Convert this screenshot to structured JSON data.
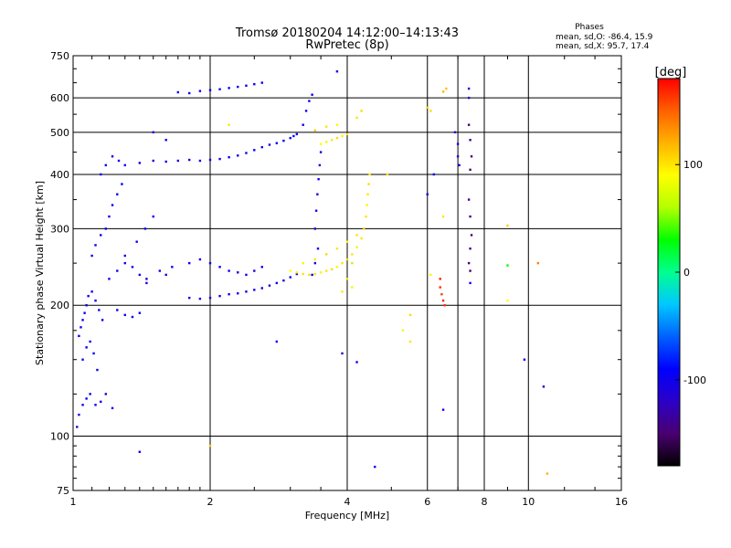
{
  "chart_data": {
    "type": "scatter",
    "title": "Tromsø 20180204 14:12:00–14:13:43",
    "subtitle": "RwPretec (8p)",
    "xlabel": "Frequency [MHz]",
    "ylabel": "Stationary phase Virtual Height [km]",
    "x_scale": "log",
    "y_scale": "log",
    "xlim": [
      1,
      16
    ],
    "ylim": [
      75,
      750
    ],
    "x_ticks": [
      {
        "value": 1,
        "label": "1"
      },
      {
        "value": 2,
        "label": "2"
      },
      {
        "value": 4,
        "label": "4"
      },
      {
        "value": 6,
        "label": "6"
      },
      {
        "value": 8,
        "label": "8"
      },
      {
        "value": 10,
        "label": "10"
      },
      {
        "value": 16,
        "label": "16"
      }
    ],
    "y_ticks": [
      {
        "value": 75,
        "label": "75"
      },
      {
        "value": 100,
        "label": "100"
      },
      {
        "value": 200,
        "label": "200"
      },
      {
        "value": 300,
        "label": "300"
      },
      {
        "value": 400,
        "label": "400"
      },
      {
        "value": 500,
        "label": "500"
      },
      {
        "value": 600,
        "label": "600"
      },
      {
        "value": 750,
        "label": "750"
      }
    ],
    "x_gridlines": [
      1,
      2,
      4,
      6,
      7,
      8,
      10,
      16
    ],
    "y_gridlines": [
      75,
      100,
      200,
      300,
      400,
      500,
      600,
      750
    ],
    "grid": true,
    "stats_header": "Phases",
    "stats": [
      "mean, sd,O: -86.4, 15.9",
      "mean, sd,X:  95.7, 17.4"
    ],
    "colorbar": {
      "label": "[deg]",
      "range": [
        -180,
        180
      ],
      "ticks": [
        {
          "value": 100,
          "label": "100"
        },
        {
          "value": 0,
          "label": "0"
        },
        {
          "value": -100,
          "label": "-100"
        }
      ],
      "colors": [
        "#000000",
        "#4a0070",
        "#2b00c8",
        "#0000ff",
        "#0060ff",
        "#00c8ff",
        "#00ff90",
        "#00ff00",
        "#b4ff00",
        "#ffff00",
        "#ffb400",
        "#ff6000",
        "#ff0000"
      ]
    },
    "series": [
      {
        "description_color": "phase",
        "points": [
          [
            1.02,
            105,
            -110
          ],
          [
            1.03,
            112,
            -105
          ],
          [
            1.05,
            118,
            -100
          ],
          [
            1.07,
            122,
            -95
          ],
          [
            1.09,
            125,
            -100
          ],
          [
            1.12,
            118,
            -105
          ],
          [
            1.15,
            120,
            -100
          ],
          [
            1.18,
            125,
            -105
          ],
          [
            1.22,
            116,
            -100
          ],
          [
            1.03,
            170,
            -95
          ],
          [
            1.04,
            178,
            -100
          ],
          [
            1.05,
            185,
            -90
          ],
          [
            1.06,
            192,
            -95
          ],
          [
            1.07,
            200,
            -100
          ],
          [
            1.08,
            210,
            -95
          ],
          [
            1.1,
            215,
            -100
          ],
          [
            1.12,
            205,
            -95
          ],
          [
            1.14,
            195,
            -100
          ],
          [
            1.16,
            185,
            -90
          ],
          [
            1.05,
            150,
            -100
          ],
          [
            1.07,
            160,
            -95
          ],
          [
            1.09,
            165,
            -100
          ],
          [
            1.11,
            155,
            -95
          ],
          [
            1.13,
            142,
            -100
          ],
          [
            1.1,
            260,
            -100
          ],
          [
            1.12,
            275,
            -95
          ],
          [
            1.15,
            290,
            -100
          ],
          [
            1.18,
            300,
            -95
          ],
          [
            1.2,
            320,
            -100
          ],
          [
            1.22,
            340,
            -95
          ],
          [
            1.25,
            360,
            -100
          ],
          [
            1.28,
            380,
            -95
          ],
          [
            1.15,
            400,
            -90
          ],
          [
            1.18,
            420,
            -95
          ],
          [
            1.22,
            440,
            -100
          ],
          [
            1.26,
            430,
            -95
          ],
          [
            1.3,
            420,
            -100
          ],
          [
            1.2,
            230,
            -100
          ],
          [
            1.25,
            240,
            -105
          ],
          [
            1.3,
            250,
            -100
          ],
          [
            1.35,
            245,
            -95
          ],
          [
            1.4,
            235,
            -100
          ],
          [
            1.45,
            225,
            -105
          ],
          [
            1.25,
            195,
            -100
          ],
          [
            1.3,
            190,
            -95
          ],
          [
            1.35,
            188,
            -100
          ],
          [
            1.4,
            192,
            -95
          ],
          [
            1.3,
            260,
            -105
          ],
          [
            1.38,
            280,
            -100
          ],
          [
            1.44,
            300,
            -95
          ],
          [
            1.5,
            320,
            -100
          ],
          [
            1.45,
            230,
            -110
          ],
          [
            1.55,
            240,
            -105
          ],
          [
            1.6,
            235,
            -110
          ],
          [
            1.65,
            245,
            -100
          ],
          [
            1.4,
            425,
            -100
          ],
          [
            1.5,
            430,
            -105
          ],
          [
            1.6,
            428,
            -100
          ],
          [
            1.7,
            430,
            -110
          ],
          [
            1.8,
            432,
            -105
          ],
          [
            1.9,
            430,
            -100
          ],
          [
            2.0,
            432,
            -105
          ],
          [
            2.1,
            434,
            -110
          ],
          [
            2.2,
            438,
            -100
          ],
          [
            2.3,
            442,
            -105
          ],
          [
            2.4,
            448,
            -100
          ],
          [
            2.5,
            455,
            -95
          ],
          [
            2.6,
            462,
            -100
          ],
          [
            2.7,
            468,
            -105
          ],
          [
            2.8,
            472,
            -95
          ],
          [
            2.9,
            478,
            -100
          ],
          [
            3.0,
            485,
            -90
          ],
          [
            3.05,
            490,
            -85
          ],
          [
            3.1,
            495,
            -95
          ],
          [
            1.8,
            208,
            -110
          ],
          [
            1.9,
            207,
            -105
          ],
          [
            2.0,
            208,
            -110
          ],
          [
            2.1,
            210,
            -105
          ],
          [
            2.2,
            212,
            -110
          ],
          [
            2.3,
            213,
            -105
          ],
          [
            2.4,
            215,
            -110
          ],
          [
            2.5,
            217,
            -105
          ],
          [
            2.6,
            219,
            -100
          ],
          [
            2.7,
            222,
            -105
          ],
          [
            2.8,
            225,
            -100
          ],
          [
            2.9,
            228,
            -105
          ],
          [
            3.0,
            232,
            -100
          ],
          [
            3.1,
            236,
            -105
          ],
          [
            1.8,
            250,
            -100
          ],
          [
            1.9,
            255,
            -105
          ],
          [
            2.0,
            250,
            -100
          ],
          [
            2.1,
            245,
            -95
          ],
          [
            2.2,
            240,
            -100
          ],
          [
            2.3,
            238,
            -105
          ],
          [
            2.4,
            235,
            -100
          ],
          [
            2.5,
            240,
            -105
          ],
          [
            2.6,
            245,
            -100
          ],
          [
            3.2,
            520,
            -100
          ],
          [
            3.25,
            560,
            -105
          ],
          [
            3.3,
            590,
            -95
          ],
          [
            3.35,
            610,
            -100
          ],
          [
            3.4,
            300,
            -110
          ],
          [
            3.42,
            330,
            -105
          ],
          [
            3.44,
            360,
            -110
          ],
          [
            3.46,
            390,
            -105
          ],
          [
            3.48,
            420,
            -110
          ],
          [
            3.5,
            450,
            -105
          ],
          [
            3.45,
            270,
            -100
          ],
          [
            3.4,
            250,
            -105
          ],
          [
            3.35,
            235,
            -100
          ],
          [
            1.7,
            618,
            -90
          ],
          [
            1.8,
            615,
            -95
          ],
          [
            1.9,
            622,
            -100
          ],
          [
            2.0,
            625,
            -95
          ],
          [
            2.1,
            628,
            -100
          ],
          [
            2.2,
            632,
            -95
          ],
          [
            2.3,
            636,
            -100
          ],
          [
            2.4,
            640,
            -95
          ],
          [
            2.5,
            645,
            -100
          ],
          [
            2.6,
            650,
            -95
          ],
          [
            3.0,
            240,
            90
          ],
          [
            3.1,
            238,
            95
          ],
          [
            3.2,
            236,
            100
          ],
          [
            3.3,
            235,
            105
          ],
          [
            3.4,
            236,
            100
          ],
          [
            3.5,
            238,
            95
          ],
          [
            3.6,
            240,
            100
          ],
          [
            3.7,
            242,
            105
          ],
          [
            3.8,
            245,
            95
          ],
          [
            3.9,
            250,
            100
          ],
          [
            4.0,
            255,
            105
          ],
          [
            4.1,
            262,
            100
          ],
          [
            4.2,
            272,
            95
          ],
          [
            4.3,
            285,
            100
          ],
          [
            4.35,
            300,
            105
          ],
          [
            4.4,
            320,
            100
          ],
          [
            4.42,
            340,
            95
          ],
          [
            4.44,
            360,
            100
          ],
          [
            4.46,
            380,
            105
          ],
          [
            4.48,
            400,
            95
          ],
          [
            3.2,
            250,
            95
          ],
          [
            3.4,
            255,
            100
          ],
          [
            3.6,
            262,
            105
          ],
          [
            3.8,
            270,
            100
          ],
          [
            4.0,
            280,
            95
          ],
          [
            4.2,
            290,
            100
          ],
          [
            3.5,
            470,
            90
          ],
          [
            3.6,
            475,
            95
          ],
          [
            3.7,
            480,
            100
          ],
          [
            3.8,
            485,
            105
          ],
          [
            3.9,
            490,
            95
          ],
          [
            4.0,
            495,
            100
          ],
          [
            3.4,
            505,
            110
          ],
          [
            3.6,
            515,
            100
          ],
          [
            3.8,
            520,
            95
          ],
          [
            4.1,
            250,
            60
          ],
          [
            4.0,
            230,
            100
          ],
          [
            4.1,
            220,
            95
          ],
          [
            3.9,
            215,
            100
          ],
          [
            4.2,
            540,
            100
          ],
          [
            4.3,
            560,
            105
          ],
          [
            6.0,
            570,
            110
          ],
          [
            6.1,
            560,
            105
          ],
          [
            6.5,
            620,
            120
          ],
          [
            6.6,
            630,
            115
          ],
          [
            7.4,
            630,
            -120
          ],
          [
            7.4,
            600,
            -110
          ],
          [
            6.4,
            230,
            170
          ],
          [
            6.4,
            220,
            165
          ],
          [
            6.45,
            212,
            160
          ],
          [
            6.5,
            205,
            170
          ],
          [
            6.55,
            200,
            165
          ],
          [
            7.4,
            520,
            -150
          ],
          [
            7.45,
            480,
            -140
          ],
          [
            7.5,
            440,
            -145
          ],
          [
            7.45,
            410,
            -150
          ],
          [
            7.4,
            350,
            -140
          ],
          [
            7.45,
            320,
            -145
          ],
          [
            7.5,
            290,
            -150
          ],
          [
            7.45,
            270,
            -140
          ],
          [
            7.4,
            250,
            -145
          ],
          [
            7.45,
            240,
            -150
          ],
          [
            7.45,
            225,
            -100
          ],
          [
            6.9,
            500,
            -110
          ],
          [
            7.0,
            470,
            -105
          ],
          [
            7.0,
            440,
            -110
          ],
          [
            7.05,
            420,
            -100
          ],
          [
            6.0,
            360,
            -100
          ],
          [
            6.2,
            400,
            -95
          ],
          [
            6.5,
            320,
            100
          ],
          [
            6.1,
            235,
            95
          ],
          [
            6.5,
            115,
            -100
          ],
          [
            9.0,
            305,
            110
          ],
          [
            9.0,
            247,
            30
          ],
          [
            9.0,
            205,
            90
          ],
          [
            10.5,
            250,
            140
          ],
          [
            9.8,
            150,
            -100
          ],
          [
            10.8,
            130,
            -100
          ],
          [
            11.0,
            82,
            120
          ],
          [
            5.5,
            190,
            105
          ],
          [
            5.3,
            175,
            95
          ],
          [
            5.5,
            165,
            100
          ],
          [
            4.9,
            400,
            100
          ],
          [
            3.9,
            155,
            -120
          ],
          [
            4.2,
            148,
            -100
          ],
          [
            2.8,
            165,
            -90
          ],
          [
            4.6,
            85,
            -100
          ],
          [
            3.8,
            690,
            -100
          ],
          [
            1.4,
            92,
            -100
          ],
          [
            2.0,
            95,
            110
          ],
          [
            2.2,
            520,
            100
          ],
          [
            1.5,
            500,
            -100
          ],
          [
            1.6,
            480,
            -90
          ]
        ]
      }
    ]
  }
}
